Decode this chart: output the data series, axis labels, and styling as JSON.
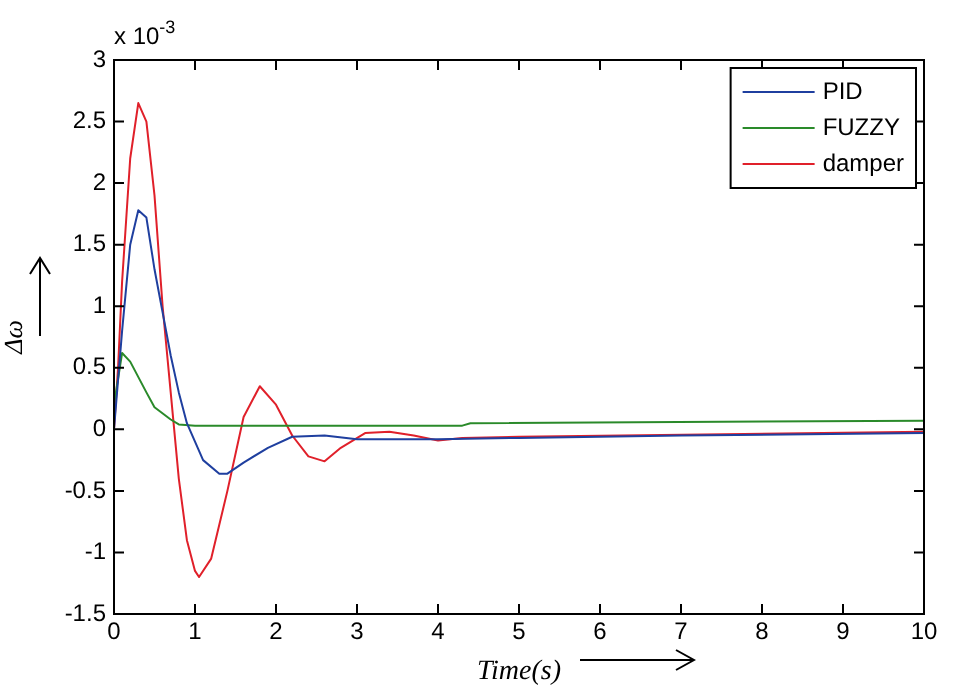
{
  "chart_data": {
    "type": "line",
    "xlabel": "Time(s)",
    "ylabel": "Δω",
    "annotations": [
      "x 10$^{-3}$"
    ],
    "xlim": [
      0,
      10
    ],
    "xticks": [
      0,
      1,
      2,
      3,
      4,
      5,
      6,
      7,
      8,
      9,
      10
    ],
    "ylim": [
      -1.5,
      3
    ],
    "yticks": [
      -1.5,
      -1,
      -0.5,
      0,
      0.5,
      1,
      1.5,
      2,
      2.5,
      3
    ],
    "grid": false,
    "legend": "top right",
    "marker": "none",
    "line_style": "solid",
    "series": [
      {
        "name": "PID",
        "color": "#1f3f9f",
        "x": [
          0,
          0.1,
          0.2,
          0.3,
          0.4,
          0.5,
          0.6,
          0.7,
          0.8,
          0.9,
          1,
          1.1,
          1.3,
          1.4,
          1.6,
          1.9,
          2.2,
          2.6,
          3,
          4,
          5,
          7,
          10
        ],
        "values": [
          0,
          0.8,
          1.5,
          1.78,
          1.72,
          1.3,
          0.95,
          0.6,
          0.3,
          0.05,
          -0.1,
          -0.25,
          -0.36,
          -0.36,
          -0.27,
          -0.15,
          -0.06,
          -0.05,
          -0.08,
          -0.08,
          -0.07,
          -0.05,
          -0.03
        ]
      },
      {
        "name": "FUZZY",
        "color": "#2a8a2a",
        "x": [
          0,
          0.1,
          0.2,
          0.4,
          0.5,
          0.7,
          0.8,
          1,
          4.3,
          4.4,
          10
        ],
        "values": [
          0.2,
          0.62,
          0.55,
          0.3,
          0.18,
          0.08,
          0.04,
          0.03,
          0.03,
          0.05,
          0.07
        ]
      },
      {
        "name": "damper",
        "color": "#e0202a",
        "x": [
          0,
          0.05,
          0.1,
          0.2,
          0.3,
          0.4,
          0.5,
          0.6,
          0.7,
          0.8,
          0.9,
          1,
          1.05,
          1.2,
          1.4,
          1.6,
          1.8,
          2,
          2.2,
          2.4,
          2.6,
          2.8,
          3.1,
          3.4,
          3.7,
          4,
          4.3,
          5,
          10
        ],
        "values": [
          0,
          0.5,
          1.2,
          2.2,
          2.65,
          2.5,
          1.9,
          1,
          0.3,
          -0.4,
          -0.9,
          -1.15,
          -1.2,
          -1.05,
          -0.5,
          0.1,
          0.35,
          0.2,
          -0.05,
          -0.22,
          -0.26,
          -0.15,
          -0.03,
          -0.02,
          -0.05,
          -0.09,
          -0.07,
          -0.06,
          -0.02
        ]
      }
    ]
  }
}
